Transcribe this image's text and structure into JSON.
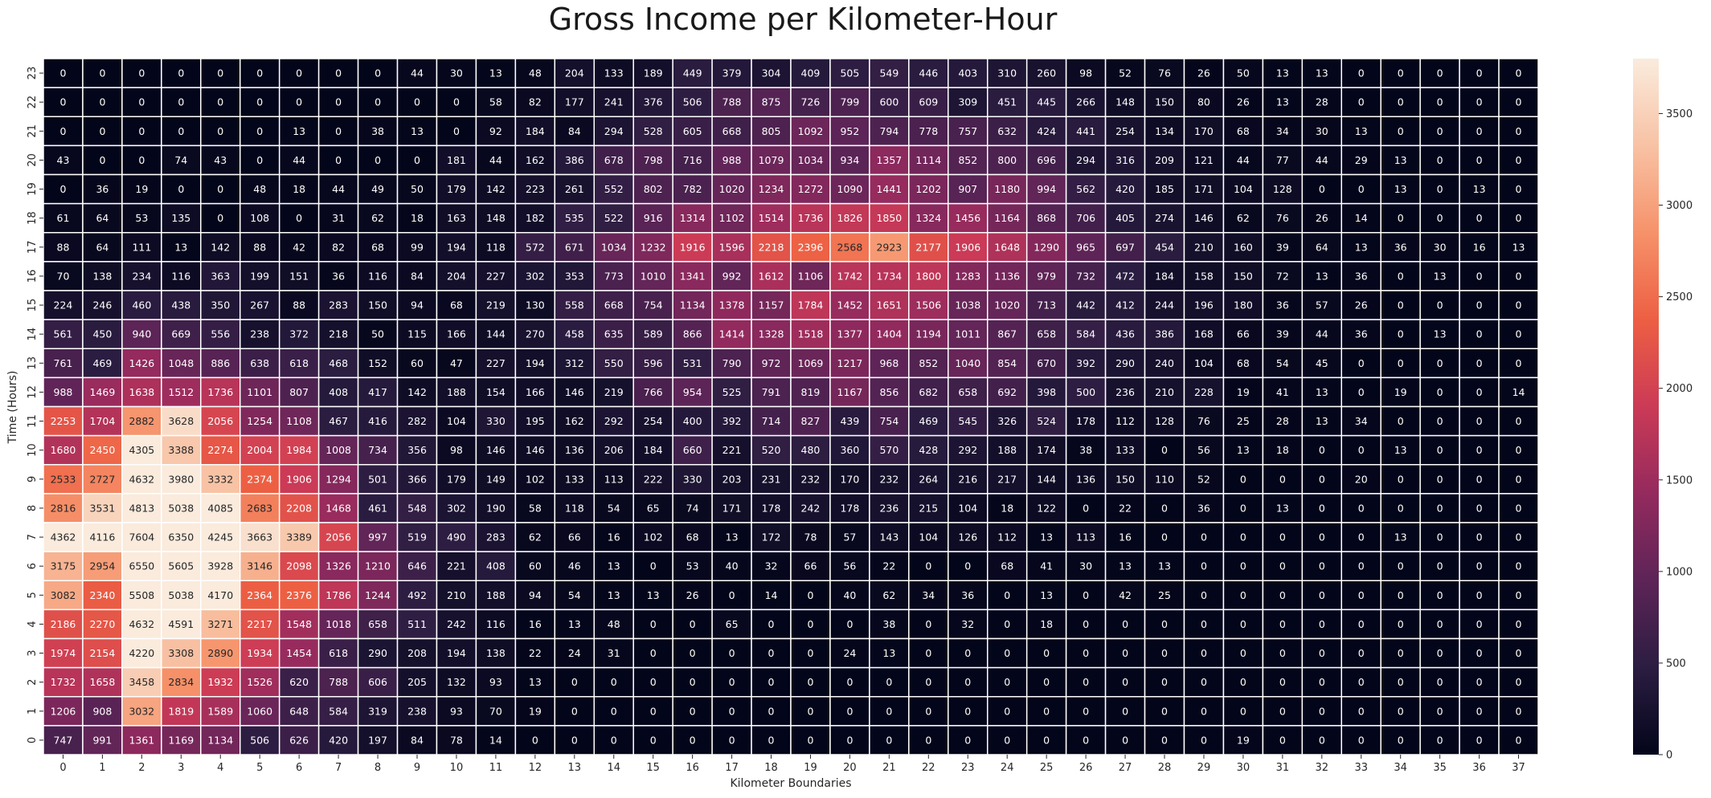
{
  "chart_data": {
    "type": "heatmap",
    "title": "Gross Income per Kilometer-Hour",
    "xlabel": "Kilometer Boundaries",
    "ylabel": "Time (Hours)",
    "x_categories": [
      "0",
      "1",
      "2",
      "3",
      "4",
      "5",
      "6",
      "7",
      "8",
      "9",
      "10",
      "11",
      "12",
      "13",
      "14",
      "15",
      "16",
      "17",
      "18",
      "19",
      "20",
      "21",
      "22",
      "23",
      "24",
      "25",
      "26",
      "27",
      "28",
      "29",
      "30",
      "31",
      "32",
      "33",
      "34",
      "35",
      "36",
      "37"
    ],
    "y_categories_top_to_bottom": [
      "23",
      "22",
      "21",
      "20",
      "19",
      "18",
      "17",
      "16",
      "15",
      "14",
      "13",
      "12",
      "11",
      "10",
      "9",
      "8",
      "7",
      "6",
      "5",
      "4",
      "3",
      "2",
      "1",
      "0"
    ],
    "values_top_to_bottom": [
      [
        0,
        0,
        0,
        0,
        0,
        0,
        0,
        0,
        0,
        44,
        30,
        13,
        48,
        204,
        133,
        189,
        449,
        379,
        304,
        409,
        505,
        549,
        446,
        403,
        310,
        260,
        98,
        52,
        76,
        26,
        50,
        13,
        13,
        0,
        0,
        0,
        0,
        0
      ],
      [
        0,
        0,
        0,
        0,
        0,
        0,
        0,
        0,
        0,
        0,
        0,
        58,
        82,
        177,
        241,
        376,
        506,
        788,
        875,
        726,
        799,
        600,
        609,
        309,
        451,
        445,
        266,
        148,
        150,
        80,
        26,
        13,
        28,
        0,
        0,
        0,
        0,
        0
      ],
      [
        0,
        0,
        0,
        0,
        0,
        0,
        13,
        0,
        38,
        13,
        0,
        92,
        184,
        84,
        294,
        528,
        605,
        668,
        805,
        1092,
        952,
        794,
        778,
        757,
        632,
        424,
        441,
        254,
        134,
        170,
        68,
        34,
        30,
        13,
        0,
        0,
        0,
        0
      ],
      [
        43,
        0,
        0,
        74,
        43,
        0,
        44,
        0,
        0,
        0,
        181,
        44,
        162,
        386,
        678,
        798,
        716,
        988,
        1079,
        1034,
        934,
        1357,
        1114,
        852,
        800,
        696,
        294,
        316,
        209,
        121,
        44,
        77,
        44,
        29,
        13,
        0,
        0,
        0
      ],
      [
        0,
        36,
        19,
        0,
        0,
        48,
        18,
        44,
        49,
        50,
        179,
        142,
        223,
        261,
        552,
        802,
        782,
        1020,
        1234,
        1272,
        1090,
        1441,
        1202,
        907,
        1180,
        994,
        562,
        420,
        185,
        171,
        104,
        128,
        0,
        0,
        13,
        0,
        13,
        0
      ],
      [
        61,
        64,
        53,
        135,
        0,
        108,
        0,
        31,
        62,
        18,
        163,
        148,
        182,
        535,
        522,
        916,
        1314,
        1102,
        1514,
        1736,
        1826,
        1850,
        1324,
        1456,
        1164,
        868,
        706,
        405,
        274,
        146,
        62,
        76,
        26,
        14,
        0,
        0,
        0,
        0
      ],
      [
        88,
        64,
        111,
        13,
        142,
        88,
        42,
        82,
        68,
        99,
        194,
        118,
        572,
        671,
        1034,
        1232,
        1916,
        1596,
        2218,
        2396,
        2568,
        2923,
        2177,
        1906,
        1648,
        1290,
        965,
        697,
        454,
        210,
        160,
        39,
        64,
        13,
        36,
        30,
        16,
        13
      ],
      [
        70,
        138,
        234,
        116,
        363,
        199,
        151,
        36,
        116,
        84,
        204,
        227,
        302,
        353,
        773,
        1010,
        1341,
        992,
        1612,
        1106,
        1742,
        1734,
        1800,
        1283,
        1136,
        979,
        732,
        472,
        184,
        158,
        150,
        72,
        13,
        36,
        0,
        13,
        0,
        0
      ],
      [
        224,
        246,
        460,
        438,
        350,
        267,
        88,
        283,
        150,
        94,
        68,
        219,
        130,
        558,
        668,
        754,
        1134,
        1378,
        1157,
        1784,
        1452,
        1651,
        1506,
        1038,
        1020,
        713,
        442,
        412,
        244,
        196,
        180,
        36,
        57,
        26,
        0,
        0,
        0,
        0
      ],
      [
        561,
        450,
        940,
        669,
        556,
        238,
        372,
        218,
        50,
        115,
        166,
        144,
        270,
        458,
        635,
        589,
        866,
        1414,
        1328,
        1518,
        1377,
        1404,
        1194,
        1011,
        867,
        658,
        584,
        436,
        386,
        168,
        66,
        39,
        44,
        36,
        0,
        13,
        0,
        0
      ],
      [
        761,
        469,
        1426,
        1048,
        886,
        638,
        618,
        468,
        152,
        60,
        47,
        227,
        194,
        312,
        550,
        596,
        531,
        790,
        972,
        1069,
        1217,
        968,
        852,
        1040,
        854,
        670,
        392,
        290,
        240,
        104,
        68,
        54,
        45,
        0,
        0,
        0,
        0,
        0
      ],
      [
        988,
        1469,
        1638,
        1512,
        1736,
        1101,
        807,
        408,
        417,
        142,
        188,
        154,
        166,
        146,
        219,
        766,
        954,
        525,
        791,
        819,
        1167,
        856,
        682,
        658,
        692,
        398,
        500,
        236,
        210,
        228,
        19,
        41,
        13,
        0,
        19,
        0,
        0,
        14
      ],
      [
        2253,
        1704,
        2882,
        3628,
        2056,
        1254,
        1108,
        467,
        416,
        282,
        104,
        330,
        195,
        162,
        292,
        254,
        400,
        392,
        714,
        827,
        439,
        754,
        469,
        545,
        326,
        524,
        178,
        112,
        128,
        76,
        25,
        28,
        13,
        34,
        0,
        0,
        0,
        0
      ],
      [
        1680,
        2450,
        4305,
        3388,
        2274,
        2004,
        1984,
        1008,
        734,
        356,
        98,
        146,
        146,
        136,
        206,
        184,
        660,
        221,
        520,
        480,
        360,
        570,
        428,
        292,
        188,
        174,
        38,
        133,
        0,
        56,
        13,
        18,
        0,
        0,
        13,
        0,
        0,
        0
      ],
      [
        2533,
        2727,
        4632,
        3980,
        3332,
        2374,
        1906,
        1294,
        501,
        366,
        179,
        149,
        102,
        133,
        113,
        222,
        330,
        203,
        231,
        232,
        170,
        232,
        264,
        216,
        217,
        144,
        136,
        150,
        110,
        52,
        0,
        0,
        0,
        20,
        0,
        0,
        0,
        0
      ],
      [
        2816,
        3531,
        4813,
        5038,
        4085,
        2683,
        2208,
        1468,
        461,
        548,
        302,
        190,
        58,
        118,
        54,
        65,
        74,
        171,
        178,
        242,
        178,
        236,
        215,
        104,
        18,
        122,
        0,
        22,
        0,
        36,
        0,
        13,
        0,
        0,
        0,
        0,
        0,
        0
      ],
      [
        4362,
        4116,
        7604,
        6350,
        4245,
        3663,
        3389,
        2056,
        997,
        519,
        490,
        283,
        62,
        66,
        16,
        102,
        68,
        13,
        172,
        78,
        57,
        143,
        104,
        126,
        112,
        13,
        113,
        16,
        0,
        0,
        0,
        0,
        0,
        0,
        13,
        0,
        0,
        0
      ],
      [
        3175,
        2954,
        6550,
        5605,
        3928,
        3146,
        2098,
        1326,
        1210,
        646,
        221,
        408,
        60,
        46,
        13,
        0,
        53,
        40,
        32,
        66,
        56,
        22,
        0,
        0,
        68,
        41,
        30,
        13,
        13,
        0,
        0,
        0,
        0,
        0,
        0,
        0,
        0,
        0
      ],
      [
        3082,
        2340,
        5508,
        5038,
        4170,
        2364,
        2376,
        1786,
        1244,
        492,
        210,
        188,
        94,
        54,
        13,
        13,
        26,
        0,
        14,
        0,
        40,
        62,
        34,
        36,
        0,
        13,
        0,
        42,
        25,
        0,
        0,
        0,
        0,
        0,
        0,
        0,
        0,
        0
      ],
      [
        2186,
        2270,
        4632,
        4591,
        3271,
        2217,
        1548,
        1018,
        658,
        511,
        242,
        116,
        16,
        13,
        48,
        0,
        0,
        65,
        0,
        0,
        0,
        38,
        0,
        32,
        0,
        18,
        0,
        0,
        0,
        0,
        0,
        0,
        0,
        0,
        0,
        0,
        0,
        0
      ],
      [
        1974,
        2154,
        4220,
        3308,
        2890,
        1934,
        1454,
        618,
        290,
        208,
        194,
        138,
        22,
        24,
        31,
        0,
        0,
        0,
        0,
        0,
        24,
        13,
        0,
        0,
        0,
        0,
        0,
        0,
        0,
        0,
        0,
        0,
        0,
        0,
        0,
        0,
        0,
        0
      ],
      [
        1732,
        1658,
        3458,
        2834,
        1932,
        1526,
        620,
        788,
        606,
        205,
        132,
        93,
        13,
        0,
        0,
        0,
        0,
        0,
        0,
        0,
        0,
        0,
        0,
        0,
        0,
        0,
        0,
        0,
        0,
        0,
        0,
        0,
        0,
        0,
        0,
        0,
        0,
        0
      ],
      [
        1206,
        908,
        3032,
        1819,
        1589,
        1060,
        648,
        584,
        319,
        238,
        93,
        70,
        19,
        0,
        0,
        0,
        0,
        0,
        0,
        0,
        0,
        0,
        0,
        0,
        0,
        0,
        0,
        0,
        0,
        0,
        0,
        0,
        0,
        0,
        0,
        0,
        0,
        0
      ],
      [
        747,
        991,
        1361,
        1169,
        1134,
        506,
        626,
        420,
        197,
        84,
        78,
        14,
        0,
        0,
        0,
        0,
        0,
        0,
        0,
        0,
        0,
        0,
        0,
        0,
        0,
        0,
        0,
        0,
        0,
        0,
        19,
        0,
        0,
        0,
        0,
        0,
        0,
        0
      ]
    ],
    "colorbar": {
      "min": 0,
      "max": 3800,
      "ticks": [
        0,
        500,
        1000,
        1500,
        2000,
        2500,
        3000,
        3500
      ],
      "colormap": "rocket",
      "stops": [
        "#03051a",
        "#2b1d41",
        "#5d2457",
        "#942a5e",
        "#cb3a56",
        "#ed5f43",
        "#f6926a",
        "#f8c2a4",
        "#faebdd"
      ]
    },
    "grid": true,
    "colors": {
      "cell_border": "#ffffff",
      "text_on_dark": "#ffffff",
      "text_on_light": "#262626",
      "axis_text": "#262626"
    }
  }
}
